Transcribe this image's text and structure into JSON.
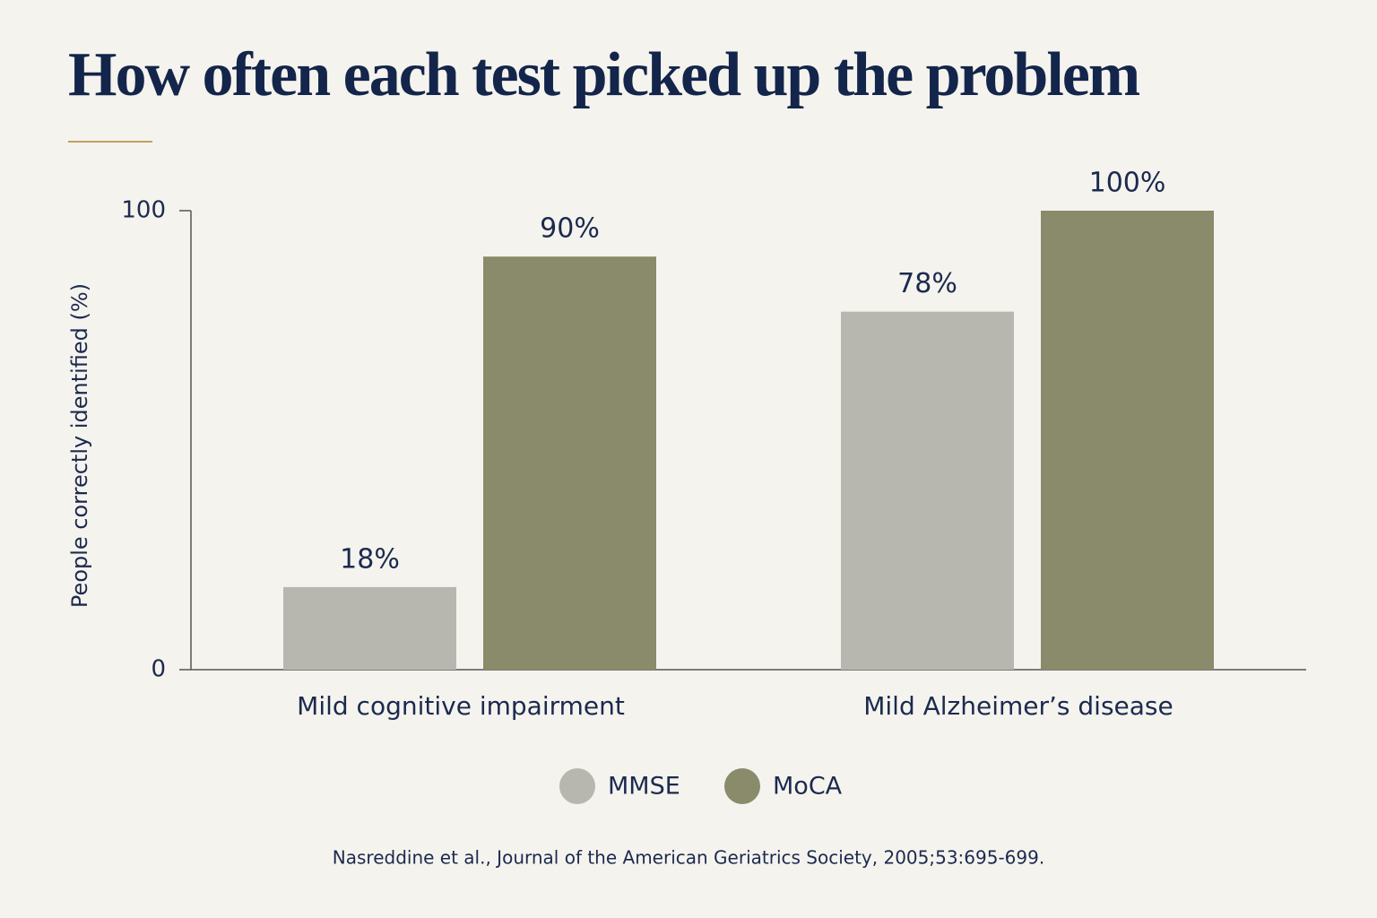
{
  "chart_data": {
    "type": "bar",
    "title": "How often each test picked up the problem",
    "y_label": "People correctly identified (%)",
    "categories": [
      "Mild cognitive impairment",
      "Mild Alzheimer’s disease"
    ],
    "series": [
      {
        "name": "MMSE",
        "color": "#b8b7af",
        "values": [
          18,
          78
        ],
        "value_labels": [
          "18%",
          "78%"
        ]
      },
      {
        "name": "MoCA",
        "color": "#8a8b6a",
        "values": [
          90,
          100
        ],
        "value_labels": [
          "90%",
          "100%"
        ]
      }
    ],
    "ylim": [
      0,
      100
    ],
    "yticks": [
      0,
      100
    ],
    "grid": false,
    "source": "Nasreddine et al., Journal of the American Geriatrics Society, 2005;53:695-699."
  }
}
